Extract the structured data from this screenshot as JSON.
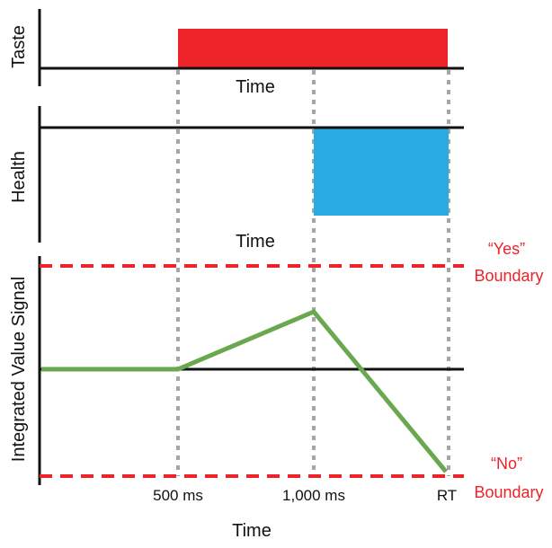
{
  "panels": {
    "taste": {
      "ylabel": "Taste",
      "xlabel": "Time",
      "color": "#EE2229"
    },
    "health": {
      "ylabel": "Health",
      "xlabel": "Time",
      "color": "#29ABE2"
    },
    "signal": {
      "ylabel": "Integrated Value Signal",
      "xlabel": "Time",
      "line_color": "#6AA84F",
      "boundary_color": "#EE2229",
      "yes_label_line1": "“Yes”",
      "yes_label_line2": "Boundary",
      "no_label_line1": "“No”",
      "no_label_line2": "Boundary"
    }
  },
  "ticks": [
    "500 ms",
    "1,000 ms",
    "RT"
  ]
}
